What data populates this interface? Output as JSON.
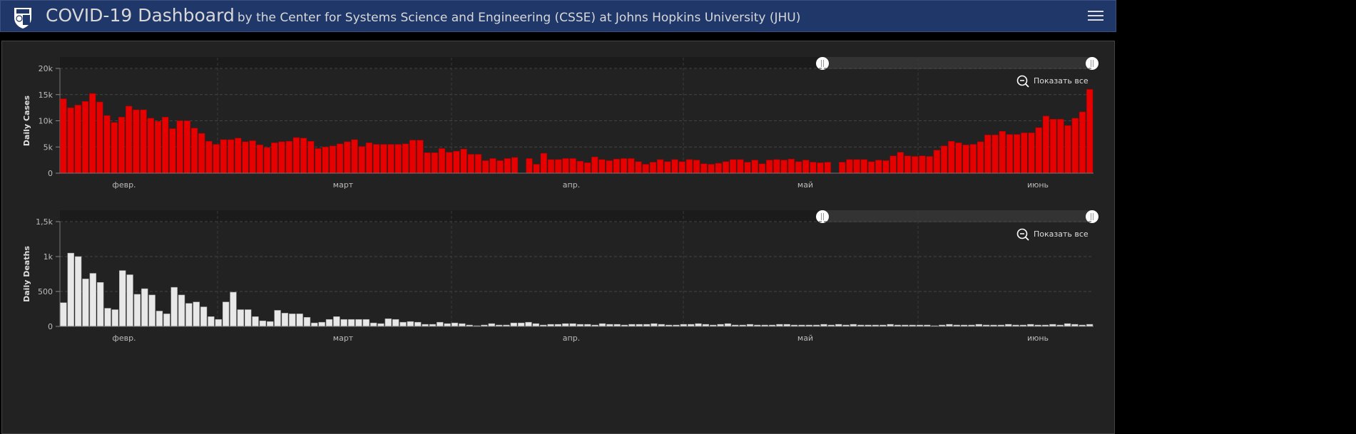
{
  "header": {
    "title": "COVID-19 Dashboard",
    "subtitle": "by the Center for Systems Science and Engineering (CSSE) at Johns Hopkins University (JHU)",
    "menu_icon": "hamburger-menu-icon"
  },
  "colors": {
    "header_bg": "#1f3769",
    "cases_bar": "#e60000",
    "deaths_bar": "#e8e8e8",
    "panel_bg": "#222222"
  },
  "chart_data": [
    {
      "type": "bar",
      "title": "",
      "ylabel": "Daily Cases",
      "xlabel": "",
      "ylim": [
        0,
        20000
      ],
      "yticks": [
        0,
        5000,
        10000,
        15000,
        20000
      ],
      "ytick_labels": [
        "0",
        "5k",
        "10k",
        "15k",
        "20k"
      ],
      "month_labels": [
        "февр.",
        "март",
        "апр.",
        "май",
        "июнь"
      ],
      "zoom_label": "Показать все",
      "grid": true,
      "values": [
        14200,
        12500,
        13000,
        13700,
        15200,
        13600,
        11000,
        9700,
        10700,
        12800,
        12100,
        12100,
        10500,
        9900,
        10700,
        8500,
        10000,
        10000,
        8600,
        7600,
        6100,
        5500,
        6400,
        6400,
        6700,
        6000,
        6200,
        5400,
        4900,
        5800,
        6000,
        6100,
        6800,
        6700,
        6100,
        4700,
        5000,
        5200,
        5600,
        6000,
        6400,
        5100,
        5800,
        5500,
        5500,
        5500,
        5500,
        5600,
        6300,
        6300,
        3900,
        3900,
        4700,
        4000,
        4200,
        4600,
        3600,
        3600,
        2400,
        2800,
        2400,
        2800,
        3000,
        0,
        2800,
        1700,
        3800,
        2600,
        2600,
        2800,
        2800,
        2300,
        2000,
        3100,
        2600,
        2400,
        2700,
        2800,
        2800,
        2200,
        1700,
        2100,
        2600,
        2200,
        2600,
        2200,
        2600,
        2500,
        1800,
        1700,
        1900,
        2200,
        2600,
        2600,
        2100,
        2500,
        1800,
        2500,
        2600,
        2500,
        2700,
        2200,
        2500,
        2100,
        2000,
        2100,
        0,
        2100,
        2600,
        2600,
        2600,
        2200,
        2500,
        2400,
        3300,
        4000,
        3300,
        3200,
        3300,
        3200,
        4400,
        5200,
        6100,
        5800,
        5400,
        5500,
        6000,
        7300,
        7300,
        8000,
        7400,
        7400,
        7700,
        7700,
        8700,
        10900,
        10300,
        10300,
        9100,
        10500,
        11700,
        16000
      ]
    },
    {
      "type": "bar",
      "title": "",
      "ylabel": "Daily Deaths",
      "xlabel": "",
      "ylim": [
        0,
        1500
      ],
      "yticks": [
        0,
        500,
        1000,
        1500
      ],
      "ytick_labels": [
        "0",
        "500",
        "1k",
        "1,5k"
      ],
      "month_labels": [
        "февр.",
        "март",
        "апр.",
        "май",
        "июнь"
      ],
      "zoom_label": "Показать все",
      "grid": true,
      "values": [
        340,
        1050,
        1000,
        680,
        760,
        630,
        260,
        240,
        800,
        740,
        460,
        540,
        450,
        220,
        180,
        560,
        450,
        330,
        350,
        280,
        140,
        100,
        350,
        490,
        240,
        240,
        140,
        80,
        70,
        230,
        190,
        180,
        180,
        130,
        50,
        60,
        100,
        140,
        100,
        100,
        100,
        100,
        50,
        40,
        110,
        100,
        60,
        70,
        60,
        30,
        30,
        60,
        40,
        50,
        40,
        20,
        10,
        20,
        40,
        20,
        20,
        50,
        50,
        60,
        40,
        20,
        30,
        30,
        40,
        40,
        30,
        30,
        20,
        40,
        30,
        30,
        20,
        30,
        30,
        30,
        40,
        30,
        20,
        20,
        30,
        30,
        40,
        30,
        20,
        30,
        40,
        20,
        20,
        30,
        20,
        20,
        20,
        30,
        30,
        20,
        20,
        20,
        20,
        30,
        20,
        30,
        20,
        30,
        20,
        20,
        20,
        20,
        30,
        20,
        20,
        20,
        20,
        20,
        10,
        20,
        30,
        20,
        20,
        20,
        30,
        20,
        20,
        20,
        30,
        20,
        20,
        30,
        20,
        20,
        30,
        20,
        40,
        30,
        20,
        30
      ]
    }
  ]
}
